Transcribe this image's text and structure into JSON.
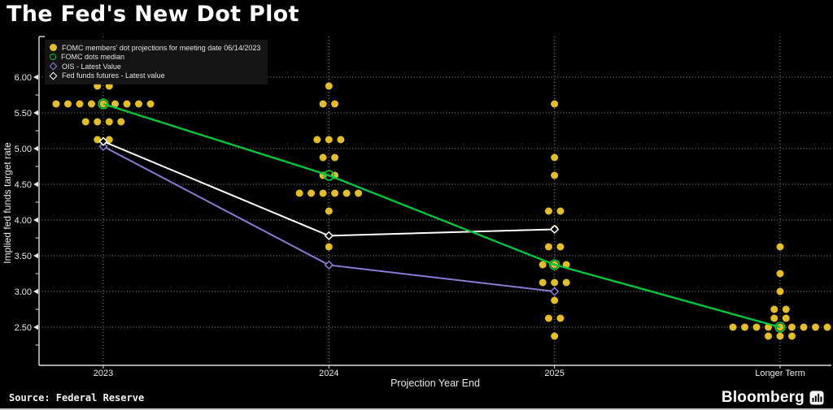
{
  "title": "The Fed's New Dot Plot",
  "source_label": "Source: Federal Reserve",
  "brand": {
    "name": "Bloomberg",
    "icon": "bar-chart-icon"
  },
  "colors": {
    "background": "#000000",
    "dots": "#e3bf25",
    "median_green": "#00c53e",
    "ois_purple": "#8a7cd4",
    "futures_white": "#ffffff",
    "grid": "#979797",
    "axis": "#dcdcdc",
    "text": "#e8e8e8"
  },
  "chart_data": {
    "type": "scatter",
    "title": "The Fed's New Dot Plot",
    "xlabel": "Projection Year End",
    "ylabel": "Implied fed funds target rate",
    "categories": [
      "2023",
      "2024",
      "2025",
      "Longer Term"
    ],
    "y_ticks": [
      "6.00",
      "5.50",
      "5.00",
      "4.50",
      "4.00",
      "3.50",
      "3.00",
      "2.50"
    ],
    "ylim": [
      2.0,
      6.0
    ],
    "grid": "dotted",
    "legend_position": "top-left",
    "legend": [
      {
        "label": "FOMC members' dot projections for meeting date 06/14/2023",
        "marker": "filled-circle",
        "color": "#e3bf25"
      },
      {
        "label": "FOMC dots median",
        "marker": "open-circle",
        "color": "#00c53e"
      },
      {
        "label": "OIS - Latest Value",
        "marker": "open-diamond",
        "color": "#8a7cd4"
      },
      {
        "label": "Fed funds futures - Latest value",
        "marker": "open-diamond",
        "color": "#ffffff"
      }
    ],
    "dot_clusters": [
      {
        "category": "2023",
        "dots": [
          {
            "rate": 5.875,
            "count": 2
          },
          {
            "rate": 5.625,
            "count": 9
          },
          {
            "rate": 5.375,
            "count": 4
          },
          {
            "rate": 5.125,
            "count": 2
          }
        ]
      },
      {
        "category": "2024",
        "dots": [
          {
            "rate": 5.875,
            "count": 1
          },
          {
            "rate": 5.625,
            "count": 2
          },
          {
            "rate": 5.125,
            "count": 3
          },
          {
            "rate": 4.875,
            "count": 2
          },
          {
            "rate": 4.625,
            "count": 2
          },
          {
            "rate": 4.375,
            "count": 6
          },
          {
            "rate": 4.125,
            "count": 1
          },
          {
            "rate": 3.625,
            "count": 1
          }
        ]
      },
      {
        "category": "2025",
        "dots": [
          {
            "rate": 5.625,
            "count": 1
          },
          {
            "rate": 4.875,
            "count": 1
          },
          {
            "rate": 4.625,
            "count": 1
          },
          {
            "rate": 4.125,
            "count": 2
          },
          {
            "rate": 3.875,
            "count": 1
          },
          {
            "rate": 3.625,
            "count": 2
          },
          {
            "rate": 3.375,
            "count": 3
          },
          {
            "rate": 3.125,
            "count": 3
          },
          {
            "rate": 2.875,
            "count": 1
          },
          {
            "rate": 2.625,
            "count": 2
          },
          {
            "rate": 2.375,
            "count": 1
          }
        ]
      },
      {
        "category": "Longer Term",
        "dots": [
          {
            "rate": 3.625,
            "count": 1
          },
          {
            "rate": 3.25,
            "count": 1
          },
          {
            "rate": 3.0,
            "count": 1
          },
          {
            "rate": 2.75,
            "count": 2
          },
          {
            "rate": 2.625,
            "count": 2
          },
          {
            "rate": 2.5,
            "count": 9
          },
          {
            "rate": 2.375,
            "count": 3
          }
        ]
      }
    ],
    "series": [
      {
        "name": "OIS - Latest Value",
        "marker": "open-diamond",
        "color": "#8a7cd4",
        "points": [
          {
            "category": "2023",
            "value": 5.03
          },
          {
            "category": "2024",
            "value": 3.37
          },
          {
            "category": "2025",
            "value": 3.0
          }
        ]
      },
      {
        "name": "Fed funds futures - Latest value",
        "marker": "open-diamond",
        "color": "#ffffff",
        "points": [
          {
            "category": "2023",
            "value": 5.1
          },
          {
            "category": "2024",
            "value": 3.78
          },
          {
            "category": "2025",
            "value": 3.87
          }
        ]
      },
      {
        "name": "FOMC dots median",
        "marker": "open-circle",
        "color": "#00c53e",
        "points": [
          {
            "category": "2023",
            "value": 5.625
          },
          {
            "category": "2024",
            "value": 4.625
          },
          {
            "category": "2025",
            "value": 3.375
          },
          {
            "category": "Longer Term",
            "value": 2.5
          }
        ]
      }
    ]
  }
}
